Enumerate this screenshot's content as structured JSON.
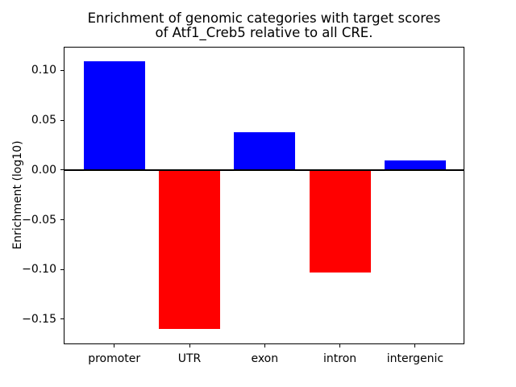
{
  "figure": {
    "title_line1": "Enrichment of genomic categories with target scores",
    "title_line2": "of Atf1_Creb5 relative to all CRE.",
    "ylabel": "Enrichment (log10)"
  },
  "chart_data": {
    "type": "bar",
    "title": "Enrichment of genomic categories with target scores\nof Atf1_Creb5 relative to all CRE.",
    "xlabel": "",
    "ylabel": "Enrichment (log10)",
    "categories": [
      "promoter",
      "UTR",
      "exon",
      "intron",
      "intergenic"
    ],
    "values": [
      0.109,
      -0.16,
      0.038,
      -0.103,
      0.01
    ],
    "bar_colors": [
      "#0000ff",
      "#ff0000",
      "#0000ff",
      "#ff0000",
      "#0000ff"
    ],
    "positive_color": "#0000ff",
    "negative_color": "#ff0000",
    "yticks": [
      0.1,
      0.05,
      0.0,
      -0.05,
      -0.1,
      -0.15
    ],
    "ytick_labels": [
      "0.10",
      "0.05",
      "0.00",
      "−0.05",
      "−0.10",
      "−0.15"
    ],
    "ylim": [
      -0.1744,
      0.1231
    ],
    "zero_line": true,
    "grid": false,
    "legend": null,
    "axis_color": "#000000",
    "background_color": "#ffffff"
  }
}
